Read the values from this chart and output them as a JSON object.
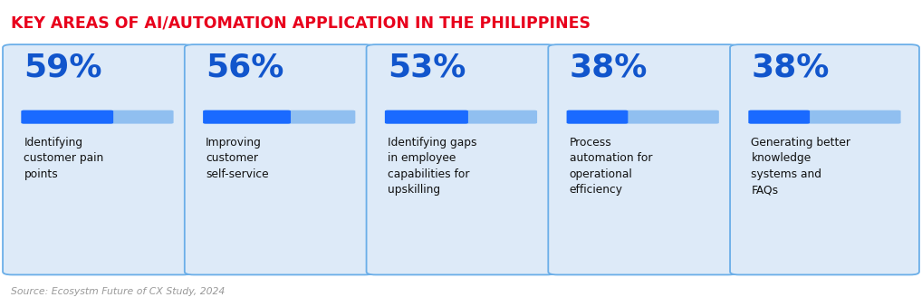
{
  "title": "KEY AREAS OF AI/AUTOMATION APPLICATION IN THE PHILIPPINES",
  "title_color": "#e8001c",
  "title_fontsize": 12.5,
  "source_text": "Source: Ecosystm Future of CX Study, 2024",
  "cards": [
    {
      "pct": "59%",
      "value": 59,
      "label": "Identifying\ncustomer pain\npoints"
    },
    {
      "pct": "56%",
      "value": 56,
      "label": "Improving\ncustomer\nself-service"
    },
    {
      "pct": "53%",
      "value": 53,
      "label": "Identifying gaps\nin employee\ncapabilities for\nupskilling"
    },
    {
      "pct": "38%",
      "value": 38,
      "label": "Process\nautomation for\noperational\nefficiency"
    },
    {
      "pct": "38%",
      "value": 38,
      "label": "Generating better\nknowledge\nsystems and\nFAQs"
    }
  ],
  "card_bg_color": "#ddeaf8",
  "card_border_color": "#6aaee8",
  "pct_color": "#1155cc",
  "label_color": "#111111",
  "bar_dark_color": "#1a6aff",
  "bar_light_color": "#90bff0",
  "background_color": "#ffffff",
  "source_color": "#999999"
}
